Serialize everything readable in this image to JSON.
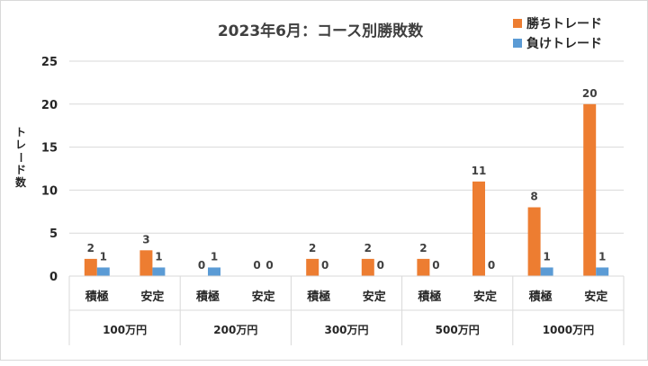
{
  "chart_data": {
    "type": "bar",
    "title": "2023年6月：コース別勝敗数",
    "ylabel": "トレード数",
    "ylim": [
      0,
      25
    ],
    "yticks": [
      0,
      5,
      10,
      15,
      20,
      25
    ],
    "grid": true,
    "legend_position": "top-right",
    "groups": [
      {
        "label": "100万円",
        "categories": [
          "積極",
          "安定"
        ]
      },
      {
        "label": "200万円",
        "categories": [
          "積極",
          "安定"
        ]
      },
      {
        "label": "300万円",
        "categories": [
          "積極",
          "安定"
        ]
      },
      {
        "label": "500万円",
        "categories": [
          "積極",
          "安定"
        ]
      },
      {
        "label": "1000万円",
        "categories": [
          "積極",
          "安定"
        ]
      }
    ],
    "categories": [
      "積極",
      "安定",
      "積極",
      "安定",
      "積極",
      "安定",
      "積極",
      "安定",
      "積極",
      "安定"
    ],
    "series": [
      {
        "name": "勝ちトレード",
        "color": "#ed7d31",
        "values": [
          2,
          3,
          0,
          0,
          2,
          2,
          2,
          11,
          8,
          20
        ]
      },
      {
        "name": "負けトレード",
        "color": "#5b9bd5",
        "values": [
          1,
          1,
          1,
          0,
          0,
          0,
          0,
          0,
          1,
          1
        ]
      }
    ]
  }
}
